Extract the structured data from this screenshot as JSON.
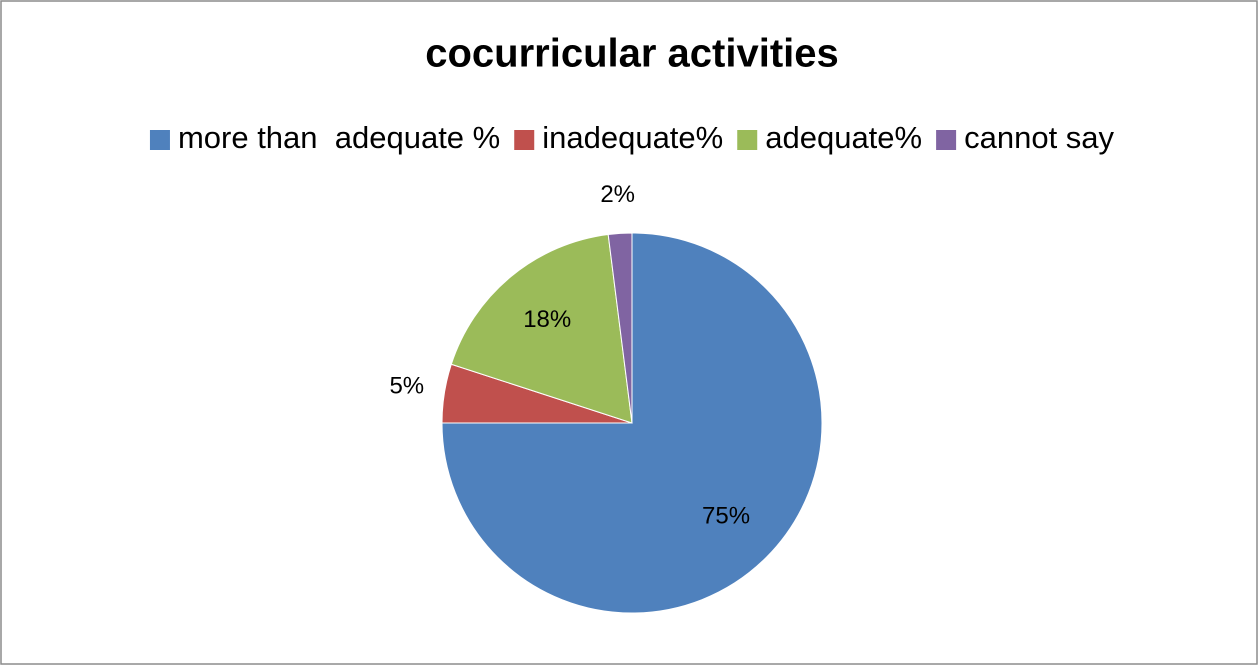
{
  "chart_data": {
    "type": "pie",
    "title": "cocurricular activities",
    "categories": [
      "more than  adequate %",
      "inadequate%",
      "adequate%",
      "cannot say"
    ],
    "values": [
      75,
      5,
      18,
      2
    ],
    "value_labels": [
      "75%",
      "5%",
      "18%",
      "2%"
    ],
    "colors": [
      "#4f81bd",
      "#c0504d",
      "#9bbb59",
      "#8064a2"
    ],
    "legend": "top"
  }
}
